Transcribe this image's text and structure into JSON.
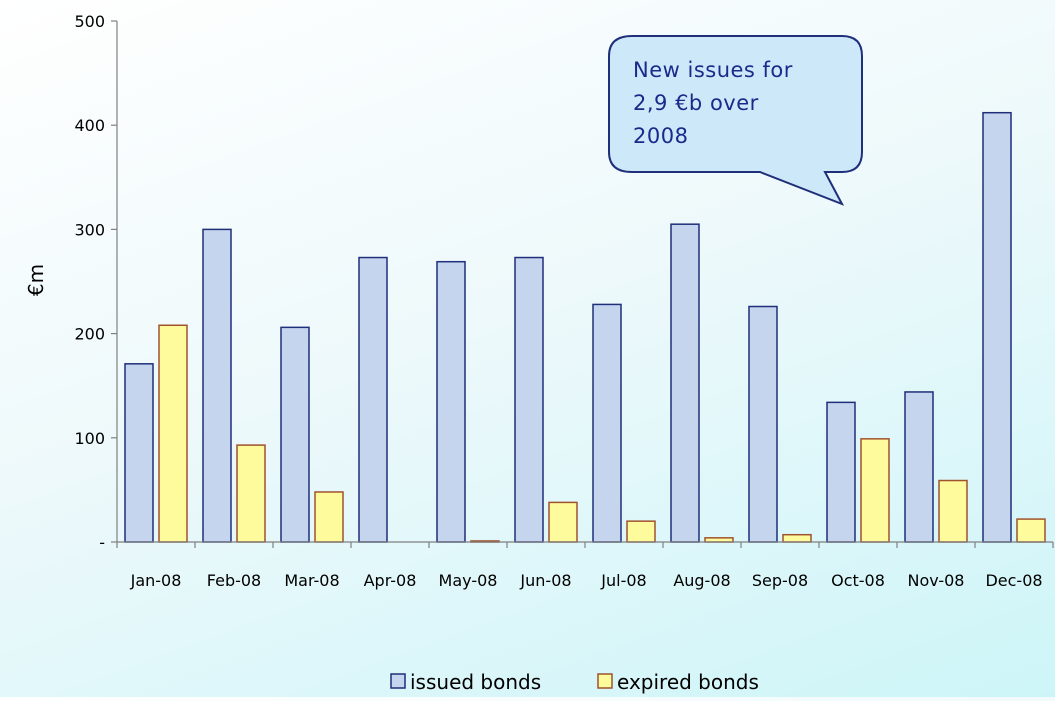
{
  "chart_data": {
    "type": "bar",
    "title": "",
    "xlabel": "",
    "ylabel": "€m",
    "ylim": [
      0,
      500
    ],
    "yticks": [
      0,
      100,
      200,
      300,
      400,
      500
    ],
    "ytick_labels": [
      "-",
      "100",
      "200",
      "300",
      "400",
      "500"
    ],
    "categories": [
      "Jan-08",
      "Feb-08",
      "Mar-08",
      "Apr-08",
      "May-08",
      "Jun-08",
      "Jul-08",
      "Aug-08",
      "Sep-08",
      "Oct-08",
      "Nov-08",
      "Dec-08"
    ],
    "series": [
      {
        "name": "issued bonds",
        "color": "#c5d5ee",
        "stroke": "#1f2f7a",
        "values": [
          171,
          300,
          206,
          273,
          269,
          273,
          228,
          305,
          226,
          134,
          144,
          412
        ]
      },
      {
        "name": "expired bonds",
        "color": "#fdfb9c",
        "stroke": "#a0522d",
        "values": [
          208,
          93,
          48,
          0,
          1,
          38,
          20,
          4,
          7,
          99,
          59,
          22
        ]
      }
    ],
    "legend": "bottom",
    "grid": false,
    "annotation": {
      "lines": [
        "New issues for",
        "2,9 €b over",
        "2008"
      ]
    }
  }
}
